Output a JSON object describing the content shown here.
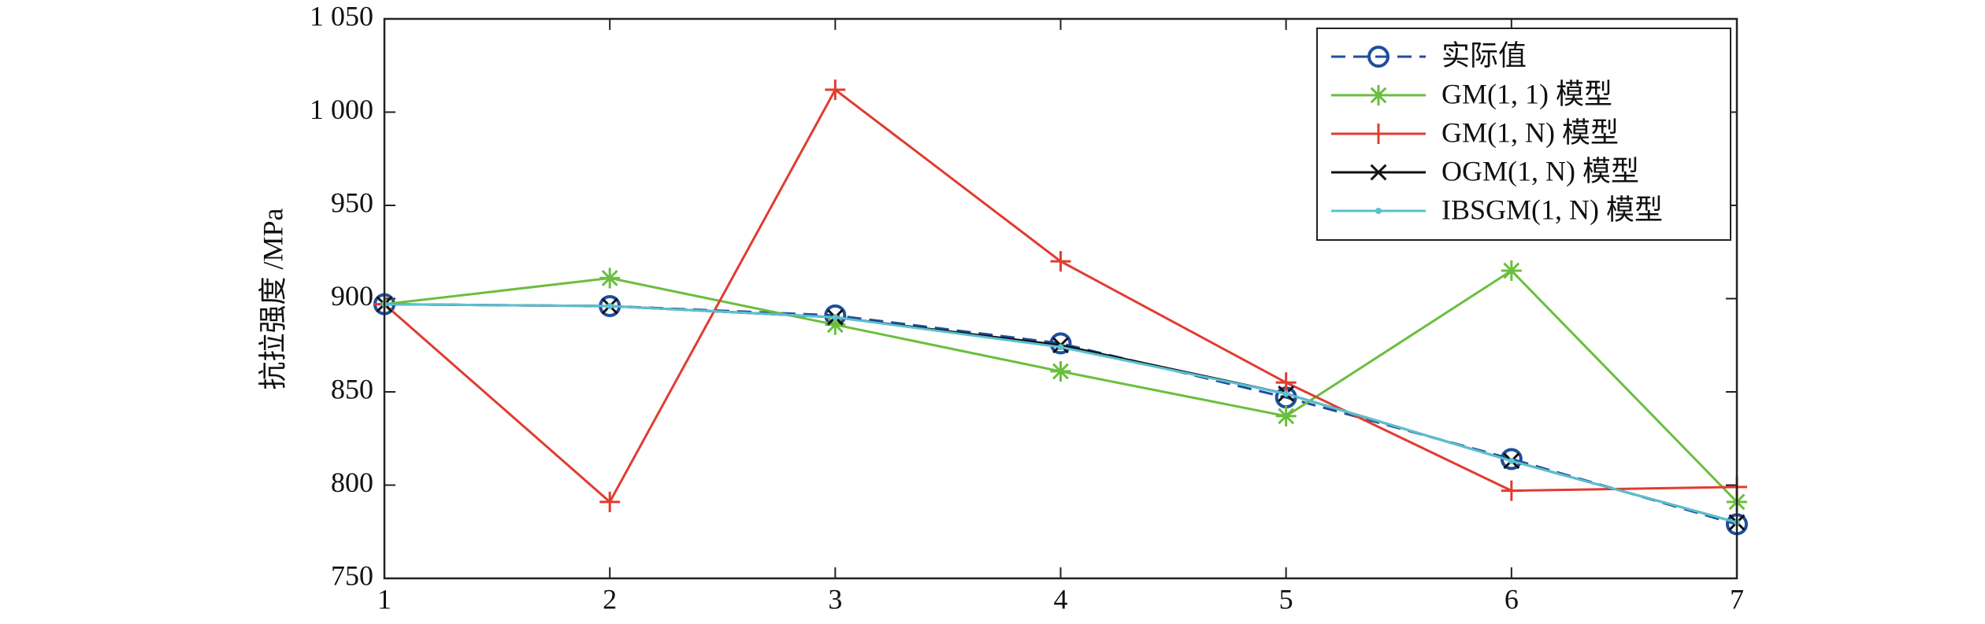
{
  "chart_data": {
    "type": "line",
    "ylabel": "抗拉强度 /MPa",
    "x": [
      1,
      2,
      3,
      4,
      5,
      6,
      7
    ],
    "xlim": [
      1,
      7
    ],
    "xticks": [
      1,
      2,
      3,
      4,
      5,
      6,
      7
    ],
    "ylim": [
      750,
      1050
    ],
    "yticks": [
      750,
      800,
      850,
      900,
      950,
      {
        "value": 1000,
        "label": "1 000"
      },
      {
        "value": 1050,
        "label": "1 050"
      }
    ],
    "legend": "upper right",
    "series": [
      {
        "name": "实际值",
        "color": "#1f4e9c",
        "marker": "circle",
        "dashed": true,
        "values": [
          897,
          896,
          891,
          876,
          847,
          814,
          779
        ]
      },
      {
        "name": "GM(1, 1) 模型",
        "color": "#6abf3e",
        "marker": "asterisk",
        "dashed": false,
        "values": [
          897,
          911,
          886,
          861,
          837,
          915,
          791
        ]
      },
      {
        "name": "GM(1, N) 模型",
        "color": "#e03c31",
        "marker": "plus",
        "dashed": false,
        "values": [
          897,
          791,
          1012,
          920,
          855,
          797,
          799
        ]
      },
      {
        "name": "OGM(1, N) 模型",
        "color": "#111111",
        "marker": "x",
        "dashed": false,
        "values": [
          897,
          896,
          890,
          875,
          849,
          813,
          780
        ]
      },
      {
        "name": "IBSGM(1, N) 模型",
        "color": "#5bc0d0",
        "marker": "dot",
        "dashed": false,
        "values": [
          897,
          896,
          890,
          874,
          849,
          813,
          780
        ]
      }
    ]
  }
}
